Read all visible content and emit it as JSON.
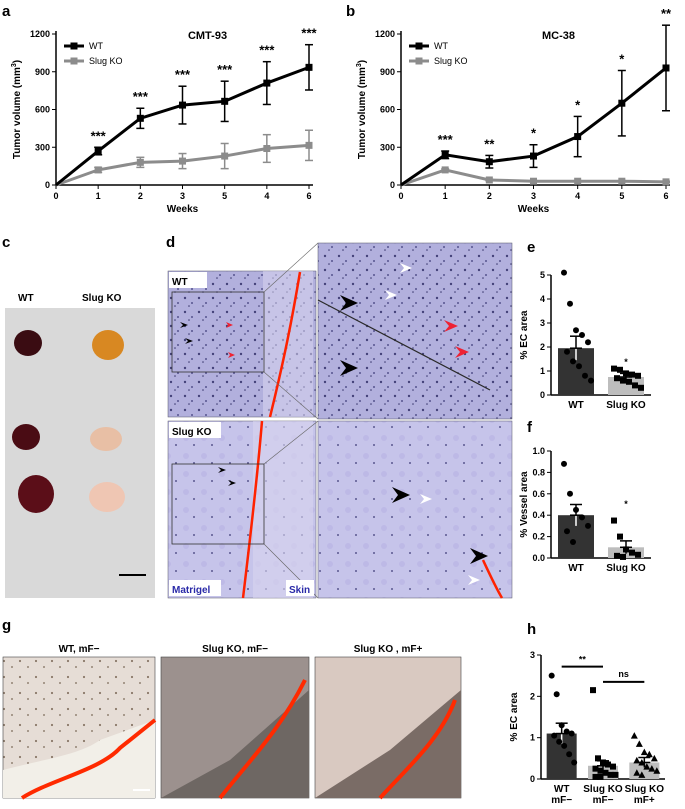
{
  "panel_labels": [
    "a",
    "b",
    "c",
    "d",
    "e",
    "f",
    "g",
    "h"
  ],
  "colors": {
    "wt": "#000000",
    "ko": "#8c8c8c",
    "ko_bar": "#bdbdbd",
    "wt_bar": "#333333",
    "outline": "#ff2200",
    "stain": "#a9a5d6"
  },
  "photo_c": {
    "wt_label": "WT",
    "ko_label": "Slug KO"
  },
  "histology_d": {
    "wt_label": "WT",
    "ko_label": "Slug KO",
    "matrigel_label": "Matrigel",
    "skin_label": "Skin"
  },
  "histology_g": {
    "labels": [
      "WT, mF−",
      "Slug KO, mF−",
      "Slug KO , mF+"
    ]
  },
  "chart_data": [
    {
      "id": "a",
      "type": "line",
      "title": "CMT-93",
      "xlabel": "Weeks",
      "ylabel": "Tumor volume (mm³)",
      "ylim": [
        0,
        1200
      ],
      "yticks": [
        0,
        300,
        600,
        900,
        1200
      ],
      "x": [
        0,
        1,
        2,
        3,
        5,
        4,
        6
      ],
      "series": [
        {
          "name": "WT",
          "values": [
            0,
            270,
            530,
            635,
            665,
            810,
            935
          ],
          "errors": [
            0,
            30,
            80,
            150,
            160,
            170,
            180
          ]
        },
        {
          "name": "Slug KO",
          "values": [
            0,
            120,
            180,
            190,
            230,
            290,
            315
          ],
          "errors": [
            0,
            20,
            40,
            60,
            100,
            110,
            120
          ]
        }
      ],
      "annotations": [
        "***",
        "***",
        "***",
        "***",
        "***",
        "***"
      ]
    },
    {
      "id": "b",
      "type": "line",
      "title": "MC-38",
      "xlabel": "Weeks",
      "ylabel": "Tumor volume (mm³)",
      "ylim": [
        0,
        1200
      ],
      "yticks": [
        0,
        300,
        600,
        900,
        1200
      ],
      "x": [
        0,
        1,
        2,
        3,
        4,
        5,
        6
      ],
      "series": [
        {
          "name": "WT",
          "values": [
            0,
            240,
            185,
            230,
            385,
            650,
            930
          ],
          "errors": [
            0,
            30,
            50,
            90,
            160,
            260,
            340
          ]
        },
        {
          "name": "Slug KO",
          "values": [
            0,
            120,
            40,
            30,
            30,
            30,
            25
          ],
          "errors": [
            0,
            8,
            6,
            5,
            5,
            5,
            5
          ]
        }
      ],
      "annotations": [
        "***",
        "**",
        "*",
        "*",
        "*",
        "**"
      ]
    },
    {
      "id": "e",
      "type": "bar",
      "ylabel": "% EC area",
      "ylim": [
        0,
        5
      ],
      "yticks": [
        0,
        1,
        2,
        3,
        4,
        5
      ],
      "categories": [
        "WT",
        "Slug KO"
      ],
      "values": [
        1.95,
        0.75
      ],
      "errors": [
        0.5,
        0.15
      ],
      "points": [
        [
          5.1,
          3.8,
          2.7,
          2.5,
          2.2,
          1.8,
          1.4,
          1.2,
          0.8,
          0.6
        ],
        [
          1.1,
          1.05,
          0.9,
          0.85,
          0.8,
          0.7,
          0.6,
          0.55,
          0.4,
          0.3
        ]
      ],
      "annotations": [
        "",
        "*"
      ]
    },
    {
      "id": "f",
      "type": "bar",
      "ylabel": "% Vessel area",
      "ylim": [
        0,
        1.0
      ],
      "yticks": [
        0.0,
        0.2,
        0.4,
        0.6,
        0.8,
        1.0
      ],
      "categories": [
        "WT",
        "Slug KO"
      ],
      "values": [
        0.4,
        0.1
      ],
      "errors": [
        0.1,
        0.06
      ],
      "points": [
        [
          0.88,
          0.6,
          0.45,
          0.38,
          0.3,
          0.25,
          0.15
        ],
        [
          0.35,
          0.2,
          0.08,
          0.05,
          0.03,
          0.02,
          0.01
        ]
      ],
      "annotations": [
        "",
        "*"
      ]
    },
    {
      "id": "h",
      "type": "bar",
      "ylabel": "% EC area",
      "ylim": [
        0,
        3
      ],
      "yticks": [
        0,
        1,
        2,
        3
      ],
      "categories": [
        "WT\nmF−",
        "Slug KO\nmF−",
        "Slug KO\nmF+"
      ],
      "values": [
        1.1,
        0.32,
        0.4
      ],
      "errors": [
        0.25,
        0.12,
        0.12
      ],
      "points": [
        [
          2.5,
          2.05,
          1.3,
          1.15,
          1.1,
          1.05,
          0.9,
          0.8,
          0.6,
          0.4
        ],
        [
          2.15,
          0.5,
          0.4,
          0.35,
          0.3,
          0.25,
          0.2,
          0.15,
          0.1,
          0.1,
          0.05,
          0.05
        ],
        [
          1.05,
          0.85,
          0.65,
          0.6,
          0.5,
          0.45,
          0.4,
          0.3,
          0.25,
          0.2,
          0.15,
          0.1
        ]
      ],
      "annotations": [
        "**",
        "ns"
      ]
    }
  ]
}
